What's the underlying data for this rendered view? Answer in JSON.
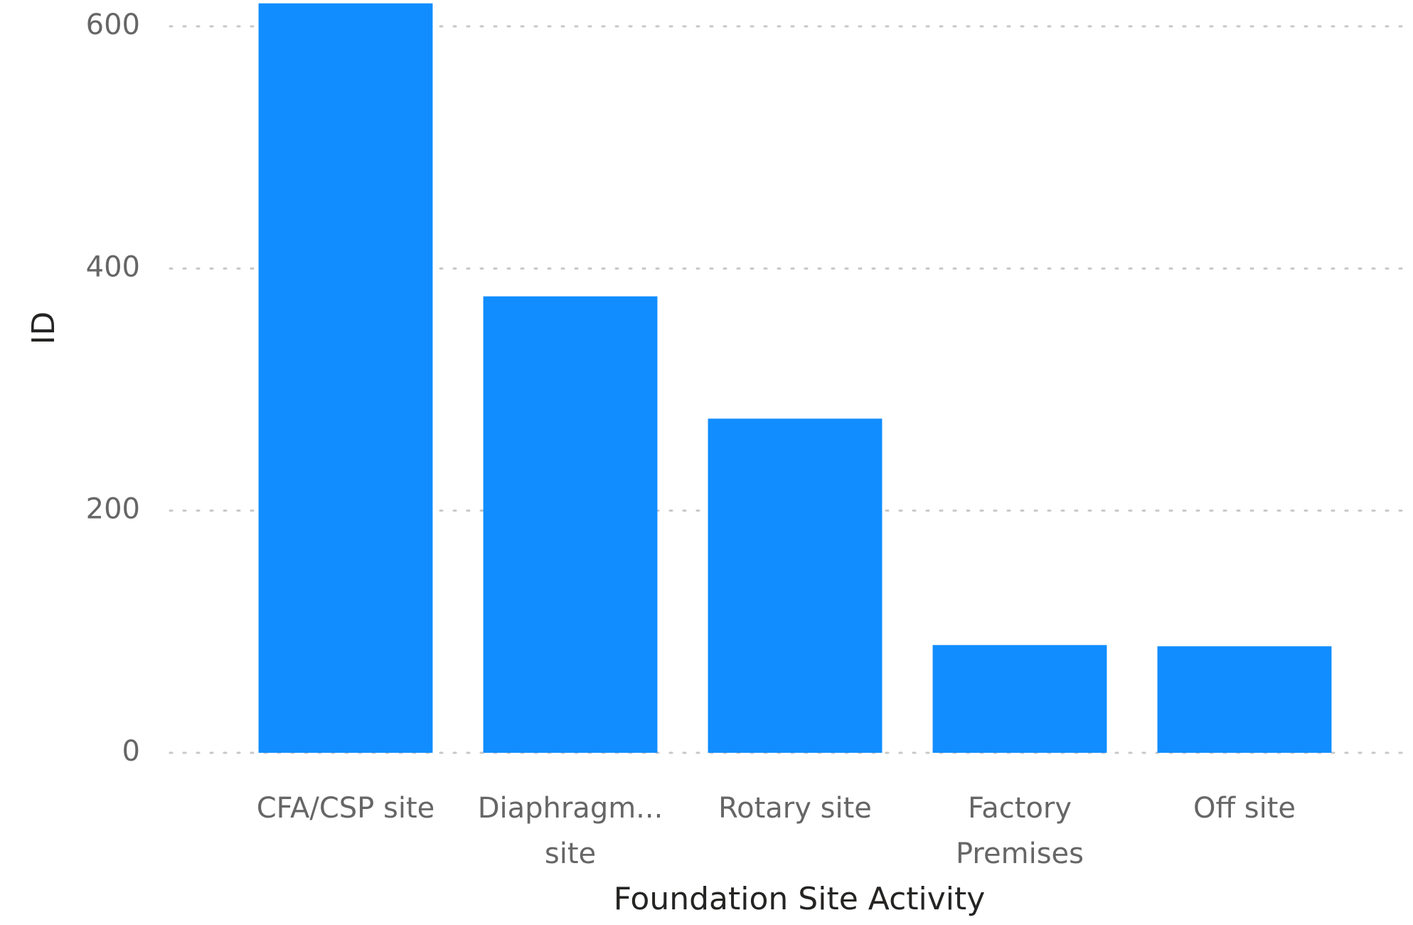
{
  "chart_data": {
    "type": "bar",
    "x_label": "Foundation Site Activity",
    "y_label": "ID",
    "categories": [
      "CFA/CSP site",
      "Diaphragm... site",
      "Rotary site",
      "Factory Premises",
      "Off site"
    ],
    "values": [
      619,
      377,
      276,
      89,
      88
    ],
    "color": "#118dff",
    "ylim": [
      0,
      621
    ],
    "yticks": [
      0,
      200,
      400,
      600
    ],
    "grid": true
  }
}
